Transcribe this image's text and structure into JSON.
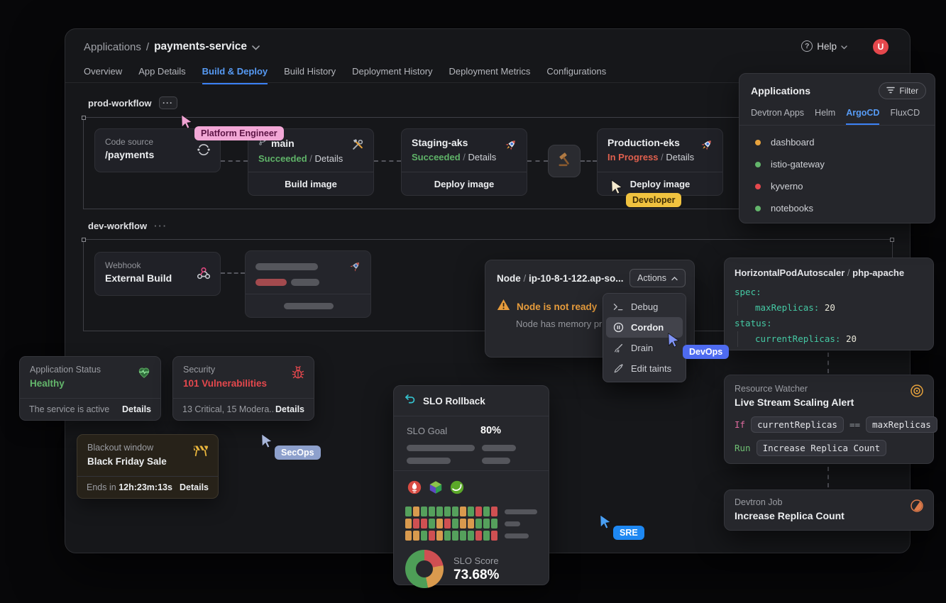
{
  "header": {
    "breadcrumb_root": "Applications",
    "breadcrumb_sep": "/",
    "app_name": "payments-service",
    "help_label": "Help",
    "help_glyph": "?",
    "avatar_initial": "U",
    "tabs": [
      "Overview",
      "App Details",
      "Build & Deploy",
      "Build History",
      "Deployment History",
      "Deployment Metrics",
      "Configurations"
    ],
    "active_tab_index": 2
  },
  "prod_workflow": {
    "label": "prod-workflow",
    "more_glyph": "···",
    "code_source": {
      "kicker": "Code source",
      "title": "/payments"
    },
    "build": {
      "branch": "main",
      "status": "Succeeded",
      "sep": "/",
      "details": "Details",
      "action": "Build image"
    },
    "staging": {
      "title": "Staging-aks",
      "status": "Succeeded",
      "sep": "/",
      "details": "Details",
      "action": "Deploy image"
    },
    "production": {
      "title": "Production-eks",
      "status": "In Progress",
      "sep": "/",
      "details": "Details",
      "action": "Deploy image"
    }
  },
  "dev_workflow": {
    "label": "dev-workflow",
    "more_glyph": "···",
    "webhook": {
      "kicker": "Webhook",
      "title": "External Build"
    }
  },
  "applications_panel": {
    "title": "Applications",
    "filter_label": "Filter",
    "tabs": [
      "Devtron Apps",
      "Helm",
      "ArgoCD",
      "FluxCD"
    ],
    "active_tab_index": 2,
    "items": [
      {
        "name": "dashboard",
        "status_color": "#e8a33d"
      },
      {
        "name": "istio-gateway",
        "status_color": "#63b56b"
      },
      {
        "name": "kyverno",
        "status_color": "#e5484d"
      },
      {
        "name": "notebooks",
        "status_color": "#63b56b"
      }
    ]
  },
  "node_panel": {
    "resource_kind": "Node",
    "title_sep": " / ",
    "resource_name": "ip-10-8-1-122.ap-so...",
    "actions_label": "Actions",
    "warning_title": "Node is not ready",
    "warning_sub": "Node has memory pre",
    "menu": [
      {
        "label": "Debug"
      },
      {
        "label": "Cordon"
      },
      {
        "label": "Drain"
      },
      {
        "label": "Edit taints"
      }
    ],
    "active_menu_index": 1
  },
  "hpa_panel": {
    "title_kind": "HorizontalPodAutoscaler",
    "title_sep": " / ",
    "title_name": "php-apache",
    "line1_key": "spec:",
    "line2_key": "maxReplicas:",
    "line2_val": "20",
    "line3_key": "status:",
    "line4_key": "currentReplicas:",
    "line4_val": "20"
  },
  "status_cards": {
    "app_status": {
      "kicker": "Application Status",
      "value": "Healthy",
      "value_color": "#63b56b",
      "footer": "The service is active",
      "details": "Details"
    },
    "security": {
      "kicker": "Security",
      "value": "101 Vulnerabilities",
      "value_color": "#e5484d",
      "footer": "13 Critical, 15 Modera...",
      "details": "Details"
    }
  },
  "blackout": {
    "kicker": "Blackout window",
    "title": "Black Friday Sale",
    "ends_label": "Ends in",
    "countdown": "12h:23m:13s",
    "details": "Details"
  },
  "slo": {
    "title": "SLO Rollback",
    "goal_label": "SLO Goal",
    "goal_value": "80%",
    "score_label": "SLO Score",
    "score_value": "73.68%",
    "heatmap_rows": [
      "GOGGGGGOGRGR",
      "ORRGORGOOGGG",
      "OOGROGGGGRGR"
    ],
    "heatmap_colors": {
      "G": "#55a05c",
      "O": "#d99a4e",
      "R": "#cf5052"
    },
    "donut": [
      {
        "name": "failing",
        "color": "#cf4f52",
        "pct": 22
      },
      {
        "name": "degraded",
        "color": "#d99a4e",
        "pct": 25
      },
      {
        "name": "healthy",
        "color": "#4e9e57",
        "pct": 53
      }
    ]
  },
  "watcher": {
    "kicker": "Resource Watcher",
    "title": "Live Stream Scaling Alert",
    "if_label": "If",
    "cond_left": "currentReplicas",
    "cond_op": "==",
    "cond_right": "maxReplicas",
    "run_label": "Run",
    "run_value": "Increase Replica Count"
  },
  "job": {
    "kicker": "Devtron Job",
    "title": "Increase Replica Count"
  },
  "cursors": {
    "platform_engineer": {
      "label": "Platform Engineer",
      "bg": "#f2a7d6",
      "fg": "#5c1445",
      "cursor": "#efa3d2"
    },
    "developer": {
      "label": "Developer",
      "bg": "#f0c23f",
      "fg": "#3f2e05",
      "cursor": "#f4e9cd"
    },
    "devops": {
      "label": "DevOps",
      "bg": "#4e6bf0",
      "fg": "#ffffff",
      "cursor": "#7f93f5"
    },
    "secops": {
      "label": "SecOps",
      "bg": "#8da0cc",
      "fg": "#ffffff",
      "cursor": "#a8b6da"
    },
    "sre": {
      "label": "SRE",
      "bg": "#1e88f2",
      "fg": "#ffffff",
      "cursor": "#4aa0f4"
    }
  }
}
